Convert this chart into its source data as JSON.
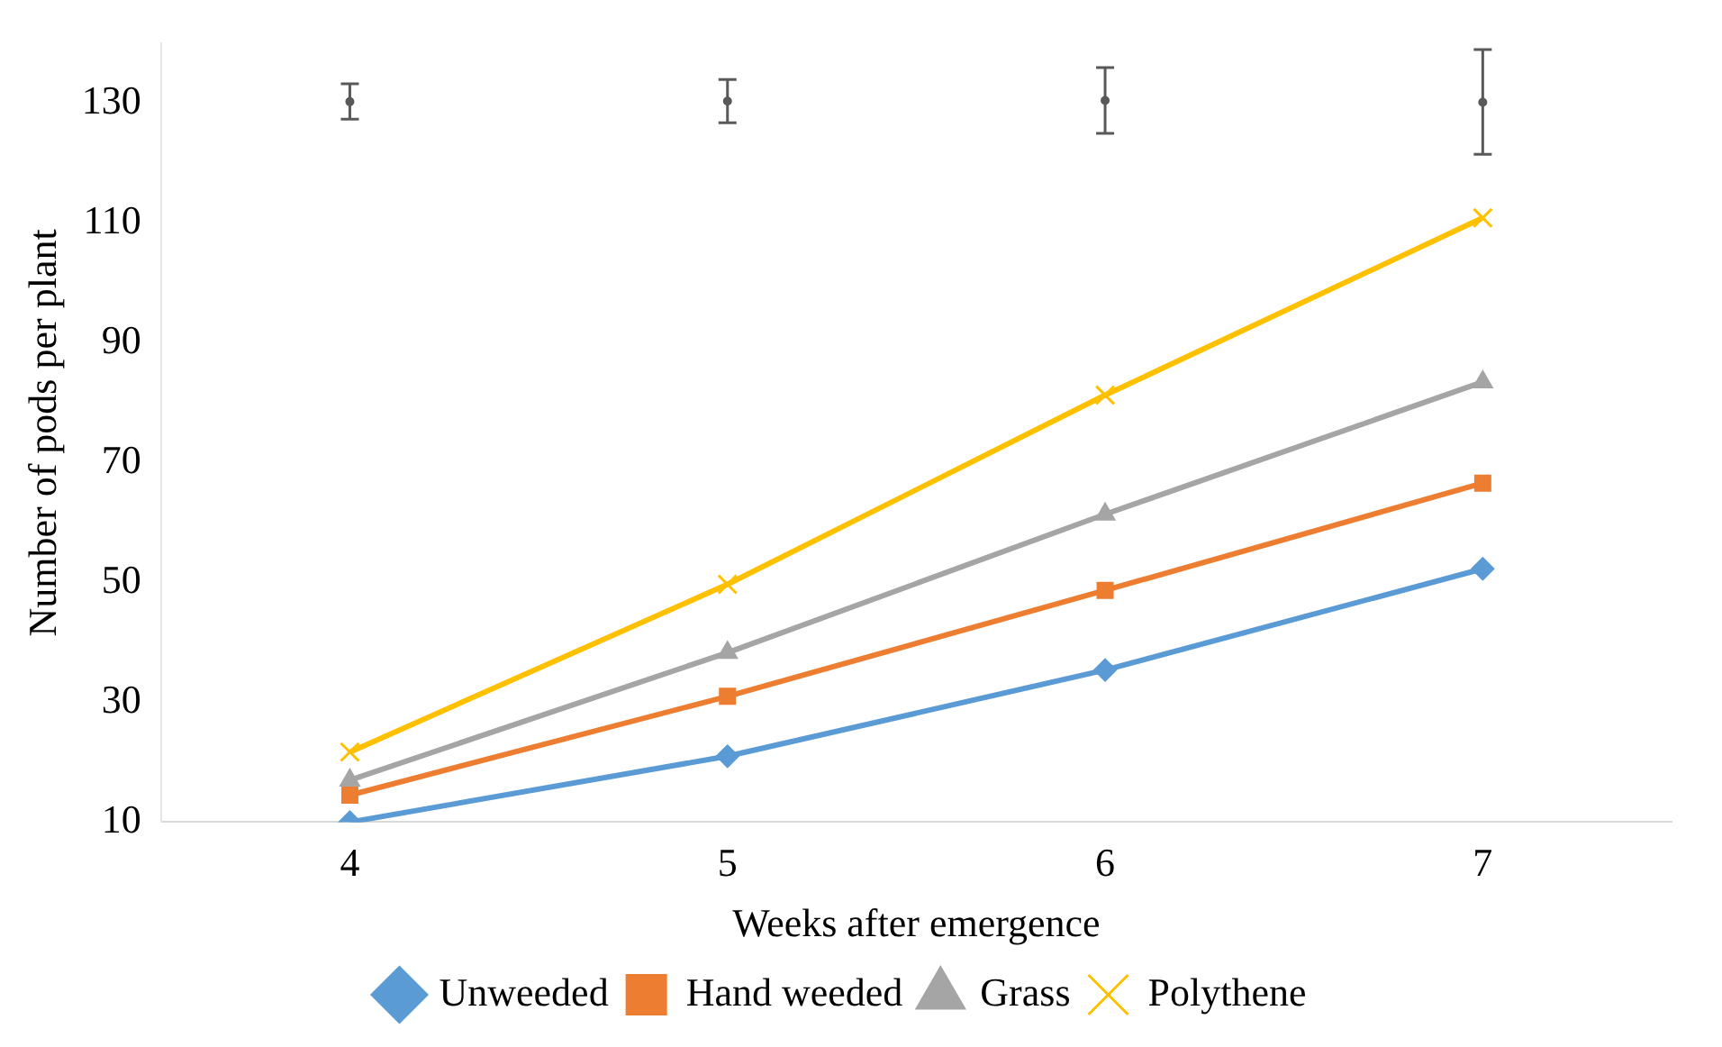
{
  "chart_data": {
    "type": "line",
    "xlabel": "Weeks after emergence",
    "ylabel": "Number of pods per plant",
    "categories": [
      "4",
      "5",
      "6",
      "7"
    ],
    "ylim": [
      10,
      140
    ],
    "yticks": [
      10,
      30,
      50,
      70,
      90,
      110,
      130
    ],
    "grid": false,
    "legend": "bottom",
    "series": [
      {
        "name": "Unweeded",
        "color": "#5b9bd5",
        "marker": "diamond",
        "values": [
          10,
          21,
          35.4,
          52.3
        ]
      },
      {
        "name": "Hand weeded",
        "color": "#ed7d31",
        "marker": "square",
        "values": [
          14.5,
          31,
          48.7,
          66.6
        ]
      },
      {
        "name": "Grass",
        "color": "#a5a5a5",
        "marker": "triangle",
        "values": [
          17,
          38.3,
          61.4,
          83.5
        ]
      },
      {
        "name": "Polythene",
        "color": "#ffc000",
        "marker": "cross",
        "values": [
          21.7,
          49.7,
          81.3,
          110.9
        ]
      },
      {
        "type": "scatter",
        "color": "#595959",
        "marker": "circle",
        "values": [
          130.3,
          130.4,
          130.5,
          130.2
        ],
        "errors": [
          [
            127.4,
            133.3
          ],
          [
            126.8,
            134
          ],
          [
            125,
            136
          ],
          [
            121.5,
            139
          ]
        ]
      }
    ]
  }
}
